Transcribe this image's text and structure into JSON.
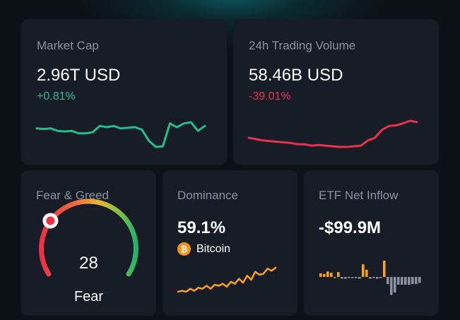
{
  "market_cap": {
    "label": "Market Cap",
    "value": "2.96T USD",
    "change": "+0.81%"
  },
  "volume": {
    "label": "24h Trading Volume",
    "value": "58.46B USD",
    "change": "-39.01%"
  },
  "fear_greed": {
    "label": "Fear & Greed",
    "index": "28",
    "sentiment": "Fear",
    "index_fraction": 0.28
  },
  "dominance": {
    "label": "Dominance",
    "value": "59.1%",
    "coin": "Bitcoin",
    "coin_icon": "bitcoin-icon"
  },
  "etf": {
    "label": "ETF Net Inflow",
    "value": "-$99.9M"
  },
  "colors": {
    "positive": "#21c08b",
    "negative": "#e8334f",
    "accent": "#f7a21b",
    "neutral": "#8a93a3"
  },
  "chart_data": [
    {
      "type": "line",
      "name": "market-cap-sparkline",
      "values": [
        48,
        47.5,
        48,
        46,
        45.5,
        46,
        44,
        44,
        45,
        50,
        49,
        50,
        48,
        48.5,
        49,
        47,
        38,
        33,
        33.5,
        52,
        49,
        52,
        53,
        46,
        50
      ]
    },
    {
      "type": "line",
      "name": "volume-sparkline",
      "values": [
        47,
        46,
        45,
        44.5,
        44,
        43.5,
        43,
        42,
        42,
        41,
        41.5,
        41,
        40.5,
        40,
        40,
        40.5,
        41,
        45,
        47,
        53,
        56,
        56.5,
        58,
        60,
        59
      ]
    },
    {
      "type": "line",
      "name": "dominance-sparkline",
      "values": [
        52,
        53,
        52,
        55,
        53,
        56,
        55,
        58,
        55,
        59,
        58,
        60,
        57,
        62,
        60,
        65,
        61,
        68,
        64,
        72,
        69,
        70,
        75,
        73,
        76
      ]
    },
    {
      "type": "bar",
      "name": "etf-flow-bars",
      "values": [
        6,
        5,
        9,
        7,
        -2,
        8,
        -3,
        -3,
        -2,
        -2,
        -2,
        -3,
        21,
        12,
        -3,
        -2,
        -3,
        -2,
        27,
        -12,
        -30,
        -26,
        -13,
        -13,
        -13,
        -13,
        -12,
        -12,
        -10
      ]
    }
  ]
}
